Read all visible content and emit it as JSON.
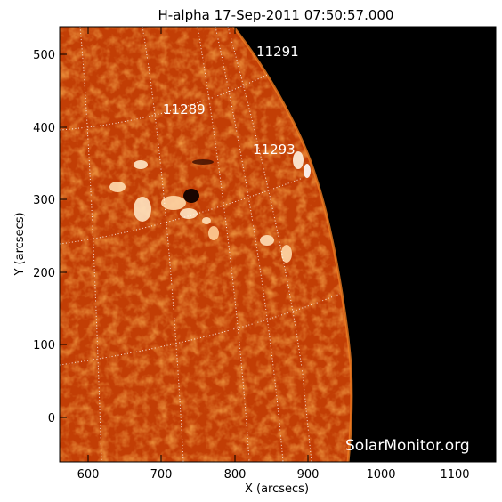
{
  "figure": {
    "title": "H-alpha 17-Sep-2011 07:50:57.000",
    "xlabel": "X (arcsecs)",
    "ylabel": "Y (arcsecs)",
    "watermark": "SolarMonitor.org",
    "x_ticks": [
      "600",
      "700",
      "800",
      "900",
      "1000",
      "1100"
    ],
    "y_ticks": [
      "500",
      "400",
      "300",
      "200",
      "100",
      "0"
    ],
    "regions": [
      "11291",
      "11289",
      "11293"
    ]
  },
  "colors": {
    "disk": "#c23e05",
    "disk_light": "#e06a1a",
    "space": "#000000",
    "grid": "#ffffff"
  }
}
